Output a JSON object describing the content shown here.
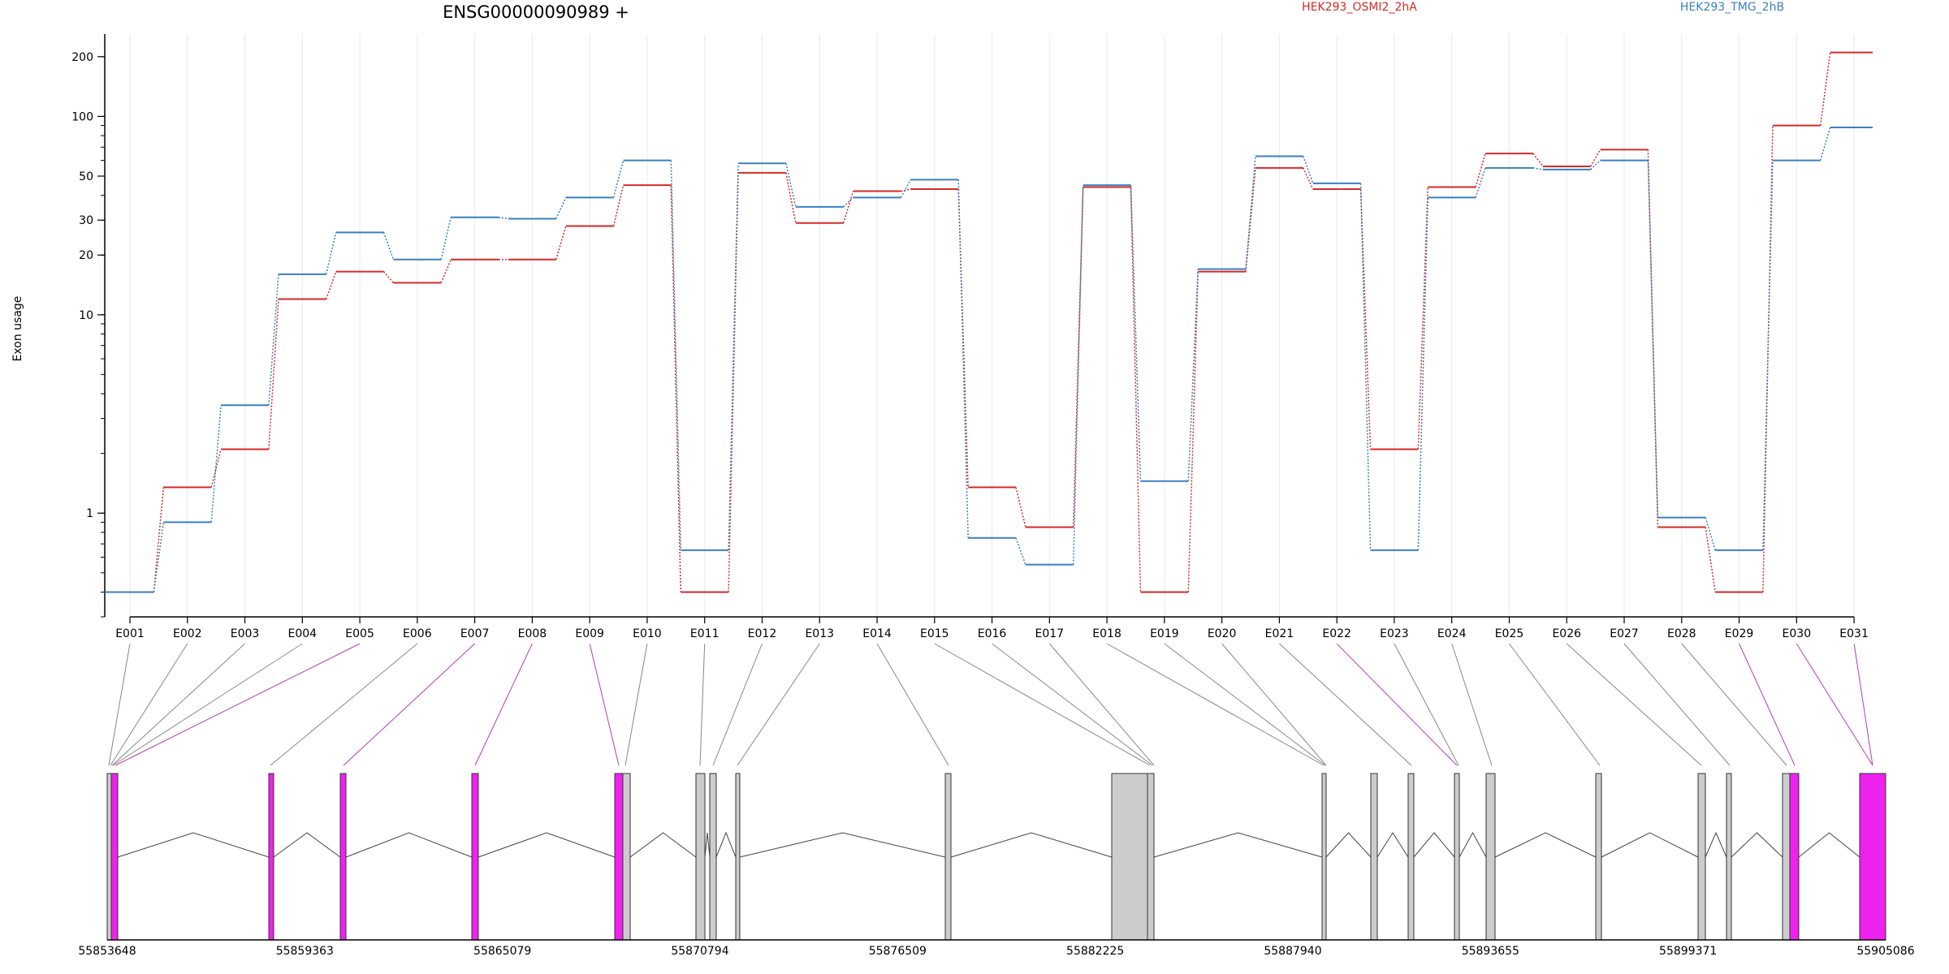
{
  "chart_data": {
    "type": "line",
    "title": "ENSG00000090989 +",
    "ylabel": "Exon usage",
    "xlabel": "",
    "y_scale": "log",
    "ylim": [
      0.3,
      260
    ],
    "y_ticks": [
      {
        "value": 1,
        "label": "1"
      },
      {
        "value": 10,
        "label": "10"
      },
      {
        "value": 20,
        "label": "20"
      },
      {
        "value": 30,
        "label": "30"
      },
      {
        "value": 50,
        "label": "50"
      },
      {
        "value": 100,
        "label": "100"
      },
      {
        "value": 200,
        "label": "200"
      }
    ],
    "categories": [
      "E001",
      "E002",
      "E003",
      "E004",
      "E005",
      "E006",
      "E007",
      "E008",
      "E009",
      "E010",
      "E011",
      "E012",
      "E013",
      "E014",
      "E015",
      "E016",
      "E017",
      "E018",
      "E019",
      "E020",
      "E021",
      "E022",
      "E023",
      "E024",
      "E025",
      "E026",
      "E027",
      "E028",
      "E029",
      "E030",
      "E031"
    ],
    "legend_placement": "top",
    "grid": true,
    "series": [
      {
        "name": "HEK293_OSMI2_2hA",
        "color": "#d42a2a",
        "values": [
          0.4,
          1.35,
          2.1,
          12,
          16.5,
          14.5,
          19,
          19,
          28,
          45,
          0.4,
          52,
          29,
          42,
          43,
          1.35,
          0.85,
          44,
          0.4,
          16.5,
          55,
          43,
          2.1,
          44,
          65,
          56,
          68,
          0.85,
          0.4,
          90,
          210
        ]
      },
      {
        "name": "HEK293_TMG_2hB",
        "color": "#3a7fc1",
        "values": [
          0.4,
          0.9,
          3.5,
          16,
          26,
          19,
          31,
          30.5,
          39,
          60,
          0.65,
          58,
          35,
          39,
          48,
          0.75,
          0.55,
          45,
          1.45,
          17,
          63,
          46,
          0.65,
          39,
          55,
          54,
          60,
          0.95,
          0.65,
          60,
          88
        ]
      }
    ],
    "genomic_axis": {
      "ticks": [
        "55853648",
        "55859363",
        "55865079",
        "55870794",
        "55876509",
        "55882225",
        "55887940",
        "55893655",
        "55899371",
        "55905086"
      ]
    },
    "gene_model": {
      "exon_colors": {
        "normal": "#cccccc",
        "significant": "#ee22ee"
      }
    }
  }
}
